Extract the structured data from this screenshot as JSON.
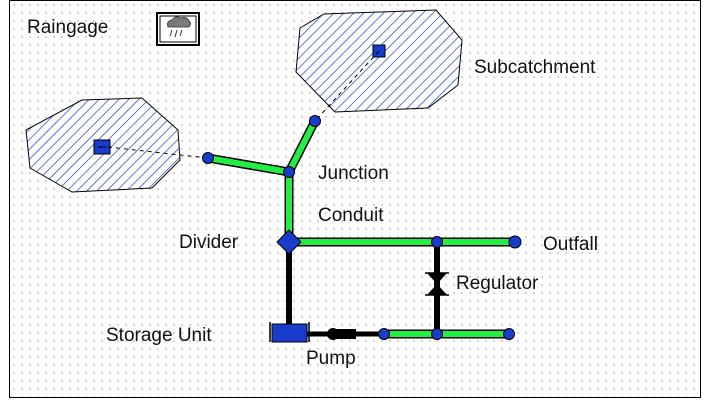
{
  "labels": {
    "raingage": "Raingage",
    "subcatchment": "Subcatchment",
    "junction": "Junction",
    "conduit": "Conduit",
    "divider": "Divider",
    "outfall": "Outfall",
    "regulator": "Regulator",
    "storage_unit": "Storage Unit",
    "pump": "Pump"
  },
  "colors": {
    "conduit": "#22ee44",
    "node": "#1a3ccc",
    "hatch": "#2040c0",
    "subcatchment_fill": "#ffffff",
    "link_dark": "#000000"
  }
}
